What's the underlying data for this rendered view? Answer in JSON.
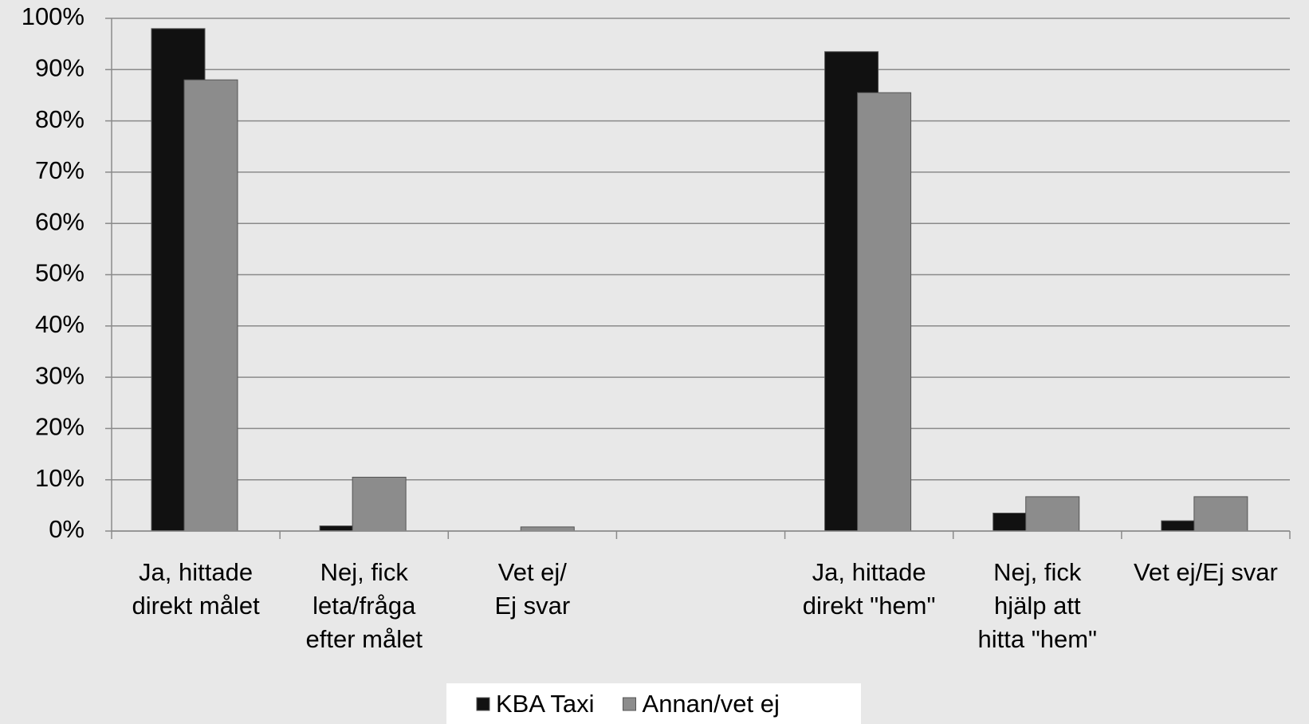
{
  "chart_data": {
    "type": "bar",
    "categories": [
      "Ja, hittade\ndirekt målet",
      "Nej, fick\nleta/fråga\nefter målet",
      "Vet ej/\nEj svar",
      null,
      "Ja, hittade\ndirekt \"hem\"",
      "Nej, fick\nhjälp att\nhitta \"hem\"",
      "Vet ej/Ej svar"
    ],
    "series": [
      {
        "name": "KBA Taxi",
        "color": "#111111",
        "values": [
          98,
          1,
          0,
          null,
          93.5,
          3.5,
          2
        ]
      },
      {
        "name": "Annan/vet ej",
        "color": "#8c8c8c",
        "values": [
          88,
          10.5,
          0.8,
          null,
          85.5,
          6.7,
          6.7
        ]
      }
    ],
    "ylim": [
      0,
      100
    ],
    "yticks": [
      {
        "value": 0,
        "label": "0%"
      },
      {
        "value": 10,
        "label": "10%"
      },
      {
        "value": 20,
        "label": "20%"
      },
      {
        "value": 30,
        "label": "30%"
      },
      {
        "value": 40,
        "label": "40%"
      },
      {
        "value": 50,
        "label": "50%"
      },
      {
        "value": 60,
        "label": "60%"
      },
      {
        "value": 70,
        "label": "70%"
      },
      {
        "value": 80,
        "label": "80%"
      },
      {
        "value": 90,
        "label": "90%"
      },
      {
        "value": 100,
        "label": "100%"
      }
    ],
    "grid": true,
    "legend": "bottom"
  }
}
